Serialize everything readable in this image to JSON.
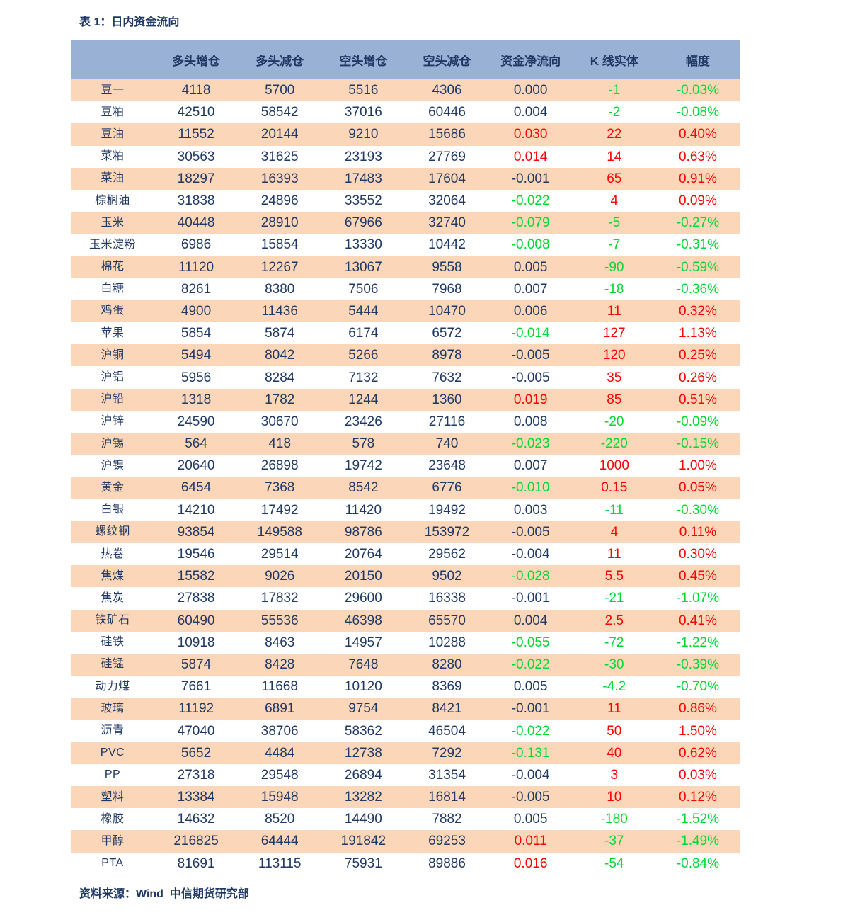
{
  "title": "表 1：日内资金流向",
  "footer": "资料来源：Wind  中信期货研究部",
  "colors": {
    "navy_text": "#1F3864",
    "red_text": "#FF0000",
    "green_text": "#00D930",
    "header_bg": "#9AB1D6",
    "alt_row_bg": "#FBD6B8",
    "page_bg": "#FFFFFF"
  },
  "table": {
    "columns": [
      "",
      "多头增仓",
      "多头减仓",
      "空头增仓",
      "空头减仓",
      "资金净流向",
      "K 线实体",
      "幅度"
    ],
    "rows": [
      {
        "name": "豆一",
        "long_add": "4118",
        "long_cut": "5700",
        "short_add": "5516",
        "short_cut": "4306",
        "net_flow": "0.000",
        "net_flow_color": "navy",
        "k_body": "-1",
        "k_color": "green",
        "amplitude": "-0.03%",
        "amp_color": "green"
      },
      {
        "name": "豆粕",
        "long_add": "42510",
        "long_cut": "58542",
        "short_add": "37016",
        "short_cut": "60446",
        "net_flow": "0.004",
        "net_flow_color": "navy",
        "k_body": "-2",
        "k_color": "green",
        "amplitude": "-0.08%",
        "amp_color": "green"
      },
      {
        "name": "豆油",
        "long_add": "11552",
        "long_cut": "20144",
        "short_add": "9210",
        "short_cut": "15686",
        "net_flow": "0.030",
        "net_flow_color": "red",
        "k_body": "22",
        "k_color": "red",
        "amplitude": "0.40%",
        "amp_color": "red"
      },
      {
        "name": "菜粕",
        "long_add": "30563",
        "long_cut": "31625",
        "short_add": "23193",
        "short_cut": "27769",
        "net_flow": "0.014",
        "net_flow_color": "red",
        "k_body": "14",
        "k_color": "red",
        "amplitude": "0.63%",
        "amp_color": "red"
      },
      {
        "name": "菜油",
        "long_add": "18297",
        "long_cut": "16393",
        "short_add": "17483",
        "short_cut": "17604",
        "net_flow": "-0.001",
        "net_flow_color": "navy",
        "k_body": "65",
        "k_color": "red",
        "amplitude": "0.91%",
        "amp_color": "red"
      },
      {
        "name": "棕榈油",
        "long_add": "31838",
        "long_cut": "24896",
        "short_add": "33552",
        "short_cut": "32064",
        "net_flow": "-0.022",
        "net_flow_color": "green",
        "k_body": "4",
        "k_color": "red",
        "amplitude": "0.09%",
        "amp_color": "red"
      },
      {
        "name": "玉米",
        "long_add": "40448",
        "long_cut": "28910",
        "short_add": "67966",
        "short_cut": "32740",
        "net_flow": "-0.079",
        "net_flow_color": "green",
        "k_body": "-5",
        "k_color": "green",
        "amplitude": "-0.27%",
        "amp_color": "green"
      },
      {
        "name": "玉米淀粉",
        "long_add": "6986",
        "long_cut": "15854",
        "short_add": "13330",
        "short_cut": "10442",
        "net_flow": "-0.008",
        "net_flow_color": "green",
        "k_body": "-7",
        "k_color": "green",
        "amplitude": "-0.31%",
        "amp_color": "green"
      },
      {
        "name": "棉花",
        "long_add": "11120",
        "long_cut": "12267",
        "short_add": "13067",
        "short_cut": "9558",
        "net_flow": "0.005",
        "net_flow_color": "navy",
        "k_body": "-90",
        "k_color": "green",
        "amplitude": "-0.59%",
        "amp_color": "green"
      },
      {
        "name": "白糖",
        "long_add": "8261",
        "long_cut": "8380",
        "short_add": "7506",
        "short_cut": "7968",
        "net_flow": "0.007",
        "net_flow_color": "navy",
        "k_body": "-18",
        "k_color": "green",
        "amplitude": "-0.36%",
        "amp_color": "green"
      },
      {
        "name": "鸡蛋",
        "long_add": "4900",
        "long_cut": "11436",
        "short_add": "5444",
        "short_cut": "10470",
        "net_flow": "0.006",
        "net_flow_color": "navy",
        "k_body": "11",
        "k_color": "red",
        "amplitude": "0.32%",
        "amp_color": "red"
      },
      {
        "name": "苹果",
        "long_add": "5854",
        "long_cut": "5874",
        "short_add": "6174",
        "short_cut": "6572",
        "net_flow": "-0.014",
        "net_flow_color": "green",
        "k_body": "127",
        "k_color": "red",
        "amplitude": "1.13%",
        "amp_color": "red"
      },
      {
        "name": "沪铜",
        "long_add": "5494",
        "long_cut": "8042",
        "short_add": "5266",
        "short_cut": "8978",
        "net_flow": "-0.005",
        "net_flow_color": "navy",
        "k_body": "120",
        "k_color": "red",
        "amplitude": "0.25%",
        "amp_color": "red"
      },
      {
        "name": "沪铝",
        "long_add": "5956",
        "long_cut": "8284",
        "short_add": "7132",
        "short_cut": "7632",
        "net_flow": "-0.005",
        "net_flow_color": "navy",
        "k_body": "35",
        "k_color": "red",
        "amplitude": "0.26%",
        "amp_color": "red"
      },
      {
        "name": "沪铅",
        "long_add": "1318",
        "long_cut": "1782",
        "short_add": "1244",
        "short_cut": "1360",
        "net_flow": "0.019",
        "net_flow_color": "red",
        "k_body": "85",
        "k_color": "red",
        "amplitude": "0.51%",
        "amp_color": "red"
      },
      {
        "name": "沪锌",
        "long_add": "24590",
        "long_cut": "30670",
        "short_add": "23426",
        "short_cut": "27116",
        "net_flow": "0.008",
        "net_flow_color": "navy",
        "k_body": "-20",
        "k_color": "green",
        "amplitude": "-0.09%",
        "amp_color": "green"
      },
      {
        "name": "沪锡",
        "long_add": "564",
        "long_cut": "418",
        "short_add": "578",
        "short_cut": "740",
        "net_flow": "-0.023",
        "net_flow_color": "green",
        "k_body": "-220",
        "k_color": "green",
        "amplitude": "-0.15%",
        "amp_color": "green"
      },
      {
        "name": "沪镍",
        "long_add": "20640",
        "long_cut": "26898",
        "short_add": "19742",
        "short_cut": "23648",
        "net_flow": "0.007",
        "net_flow_color": "navy",
        "k_body": "1000",
        "k_color": "red",
        "amplitude": "1.00%",
        "amp_color": "red"
      },
      {
        "name": "黄金",
        "long_add": "6454",
        "long_cut": "7368",
        "short_add": "8542",
        "short_cut": "6776",
        "net_flow": "-0.010",
        "net_flow_color": "green",
        "k_body": "0.15",
        "k_color": "red",
        "amplitude": "0.05%",
        "amp_color": "red"
      },
      {
        "name": "白银",
        "long_add": "14210",
        "long_cut": "17492",
        "short_add": "11420",
        "short_cut": "19492",
        "net_flow": "0.003",
        "net_flow_color": "navy",
        "k_body": "-11",
        "k_color": "green",
        "amplitude": "-0.30%",
        "amp_color": "green"
      },
      {
        "name": "螺纹钢",
        "long_add": "93854",
        "long_cut": "149588",
        "short_add": "98786",
        "short_cut": "153972",
        "net_flow": "-0.005",
        "net_flow_color": "navy",
        "k_body": "4",
        "k_color": "red",
        "amplitude": "0.11%",
        "amp_color": "red"
      },
      {
        "name": "热卷",
        "long_add": "19546",
        "long_cut": "29514",
        "short_add": "20764",
        "short_cut": "29562",
        "net_flow": "-0.004",
        "net_flow_color": "navy",
        "k_body": "11",
        "k_color": "red",
        "amplitude": "0.30%",
        "amp_color": "red"
      },
      {
        "name": "焦煤",
        "long_add": "15582",
        "long_cut": "9026",
        "short_add": "20150",
        "short_cut": "9502",
        "net_flow": "-0.028",
        "net_flow_color": "green",
        "k_body": "5.5",
        "k_color": "red",
        "amplitude": "0.45%",
        "amp_color": "red"
      },
      {
        "name": "焦炭",
        "long_add": "27838",
        "long_cut": "17832",
        "short_add": "29600",
        "short_cut": "16338",
        "net_flow": "-0.001",
        "net_flow_color": "navy",
        "k_body": "-21",
        "k_color": "green",
        "amplitude": "-1.07%",
        "amp_color": "green"
      },
      {
        "name": "铁矿石",
        "long_add": "60490",
        "long_cut": "55536",
        "short_add": "46398",
        "short_cut": "65570",
        "net_flow": "0.004",
        "net_flow_color": "navy",
        "k_body": "2.5",
        "k_color": "red",
        "amplitude": "0.41%",
        "amp_color": "red"
      },
      {
        "name": "硅铁",
        "long_add": "10918",
        "long_cut": "8463",
        "short_add": "14957",
        "short_cut": "10288",
        "net_flow": "-0.055",
        "net_flow_color": "green",
        "k_body": "-72",
        "k_color": "green",
        "amplitude": "-1.22%",
        "amp_color": "green"
      },
      {
        "name": "硅锰",
        "long_add": "5874",
        "long_cut": "8428",
        "short_add": "7648",
        "short_cut": "8280",
        "net_flow": "-0.022",
        "net_flow_color": "green",
        "k_body": "-30",
        "k_color": "green",
        "amplitude": "-0.39%",
        "amp_color": "green"
      },
      {
        "name": "动力煤",
        "long_add": "7661",
        "long_cut": "11668",
        "short_add": "10120",
        "short_cut": "8369",
        "net_flow": "0.005",
        "net_flow_color": "navy",
        "k_body": "-4.2",
        "k_color": "green",
        "amplitude": "-0.70%",
        "amp_color": "green"
      },
      {
        "name": "玻璃",
        "long_add": "11192",
        "long_cut": "6891",
        "short_add": "9754",
        "short_cut": "8421",
        "net_flow": "-0.001",
        "net_flow_color": "navy",
        "k_body": "11",
        "k_color": "red",
        "amplitude": "0.86%",
        "amp_color": "red"
      },
      {
        "name": "沥青",
        "long_add": "47040",
        "long_cut": "38706",
        "short_add": "58362",
        "short_cut": "46504",
        "net_flow": "-0.022",
        "net_flow_color": "green",
        "k_body": "50",
        "k_color": "red",
        "amplitude": "1.50%",
        "amp_color": "red"
      },
      {
        "name": "PVC",
        "long_add": "5652",
        "long_cut": "4484",
        "short_add": "12738",
        "short_cut": "7292",
        "net_flow": "-0.131",
        "net_flow_color": "green",
        "k_body": "40",
        "k_color": "red",
        "amplitude": "0.62%",
        "amp_color": "red"
      },
      {
        "name": "PP",
        "long_add": "27318",
        "long_cut": "29548",
        "short_add": "26894",
        "short_cut": "31354",
        "net_flow": "-0.004",
        "net_flow_color": "navy",
        "k_body": "3",
        "k_color": "red",
        "amplitude": "0.03%",
        "amp_color": "red"
      },
      {
        "name": "塑料",
        "long_add": "13384",
        "long_cut": "15948",
        "short_add": "13282",
        "short_cut": "16814",
        "net_flow": "-0.005",
        "net_flow_color": "navy",
        "k_body": "10",
        "k_color": "red",
        "amplitude": "0.12%",
        "amp_color": "red"
      },
      {
        "name": "橡胶",
        "long_add": "14632",
        "long_cut": "8520",
        "short_add": "14490",
        "short_cut": "7882",
        "net_flow": "0.005",
        "net_flow_color": "navy",
        "k_body": "-180",
        "k_color": "green",
        "amplitude": "-1.52%",
        "amp_color": "green"
      },
      {
        "name": "甲醇",
        "long_add": "216825",
        "long_cut": "64444",
        "short_add": "191842",
        "short_cut": "69253",
        "net_flow": "0.011",
        "net_flow_color": "red",
        "k_body": "-37",
        "k_color": "green",
        "amplitude": "-1.49%",
        "amp_color": "green"
      },
      {
        "name": "PTA",
        "long_add": "81691",
        "long_cut": "113115",
        "short_add": "75931",
        "short_cut": "89886",
        "net_flow": "0.016",
        "net_flow_color": "red",
        "k_body": "-54",
        "k_color": "green",
        "amplitude": "-0.84%",
        "amp_color": "green"
      }
    ]
  }
}
